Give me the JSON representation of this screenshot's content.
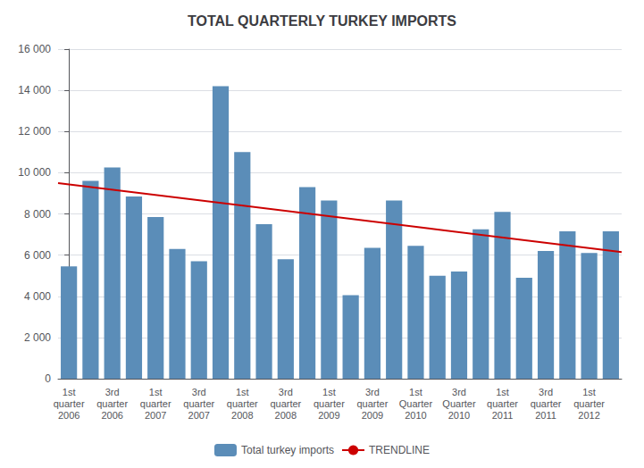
{
  "chart_data": {
    "type": "bar",
    "title": "TOTAL QUARTERLY TURKEY IMPORTS",
    "categories": [
      "1st\nquarter\n2006",
      null,
      "3rd\nquarter\n2006",
      null,
      "1st\nquarter\n2007",
      null,
      "3rd\nquarter\n2007",
      null,
      "1st\nquarter\n2008",
      null,
      "3rd\nquarter\n2008",
      null,
      "1st\nquarter\n2009",
      null,
      "3rd\nquarter\n2009",
      null,
      "1st\nQuarter\n2010",
      null,
      "3rd\nQuarter\n2010",
      null,
      "1st\nquarter\n2011",
      null,
      "3rd\nquarter\n2011",
      null,
      "1st\nquarter\n2012",
      null
    ],
    "series": [
      {
        "name": "Total turkey imports",
        "type": "bar",
        "color": "#5b8db8",
        "values": [
          5450,
          9600,
          10250,
          8850,
          7850,
          6300,
          5700,
          14200,
          11000,
          7500,
          5800,
          9300,
          8650,
          4050,
          6350,
          8650,
          6450,
          5000,
          5200,
          7250,
          8100,
          4900,
          6200,
          7150,
          6100,
          7150
        ]
      }
    ],
    "trendline": {
      "name": "TRENDLINE",
      "color": "#cc0000",
      "start": 9500,
      "end": 6150
    },
    "ylim": [
      0,
      16000
    ],
    "yticks": [
      0,
      {
        "value": 2000,
        "label": "2 000"
      },
      {
        "value": 4000,
        "label": "4 000"
      },
      {
        "value": 6000,
        "label": "6 000"
      },
      {
        "value": 8000,
        "label": "8 000"
      },
      {
        "value": 10000,
        "label": "10 000"
      },
      {
        "value": 12000,
        "label": "12 000"
      },
      {
        "value": 14000,
        "label": "14 000"
      },
      {
        "value": 16000,
        "label": "16 000"
      }
    ],
    "grid": true,
    "legend": "bottom"
  }
}
